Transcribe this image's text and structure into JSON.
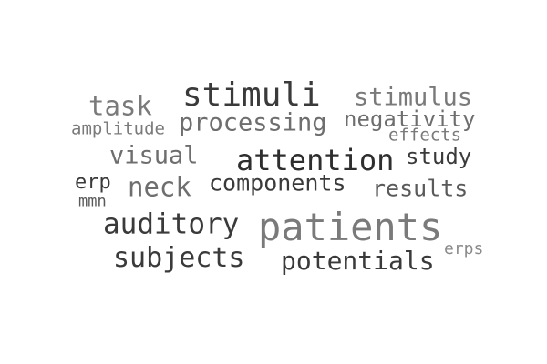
{
  "word_cloud": {
    "words": [
      {
        "text": "patients",
        "color": "#7a7a7a"
      },
      {
        "text": "stimuli",
        "color": "#3a3a3a"
      },
      {
        "text": "attention",
        "color": "#2e2e2e"
      },
      {
        "text": "auditory",
        "color": "#3a3a3a"
      },
      {
        "text": "processing",
        "color": "#6e6e6e"
      },
      {
        "text": "subjects",
        "color": "#3a3a3a"
      },
      {
        "text": "potentials",
        "color": "#3a3a3a"
      },
      {
        "text": "stimulus",
        "color": "#7a7a7a"
      },
      {
        "text": "negativity",
        "color": "#6e6e6e"
      },
      {
        "text": "components",
        "color": "#3a3a3a"
      },
      {
        "text": "results",
        "color": "#5a5a5a"
      },
      {
        "text": "neck",
        "color": "#6e6e6e"
      },
      {
        "text": "visual",
        "color": "#6e6e6e"
      },
      {
        "text": "task",
        "color": "#7a7a7a"
      },
      {
        "text": "study",
        "color": "#3a3a3a"
      },
      {
        "text": "erp",
        "color": "#3a3a3a"
      },
      {
        "text": "amplitude",
        "color": "#7a7a7a"
      },
      {
        "text": "effects",
        "color": "#7a7a7a"
      },
      {
        "text": "erps",
        "color": "#8a8a8a"
      },
      {
        "text": "mmn",
        "color": "#5a5a5a"
      }
    ]
  }
}
